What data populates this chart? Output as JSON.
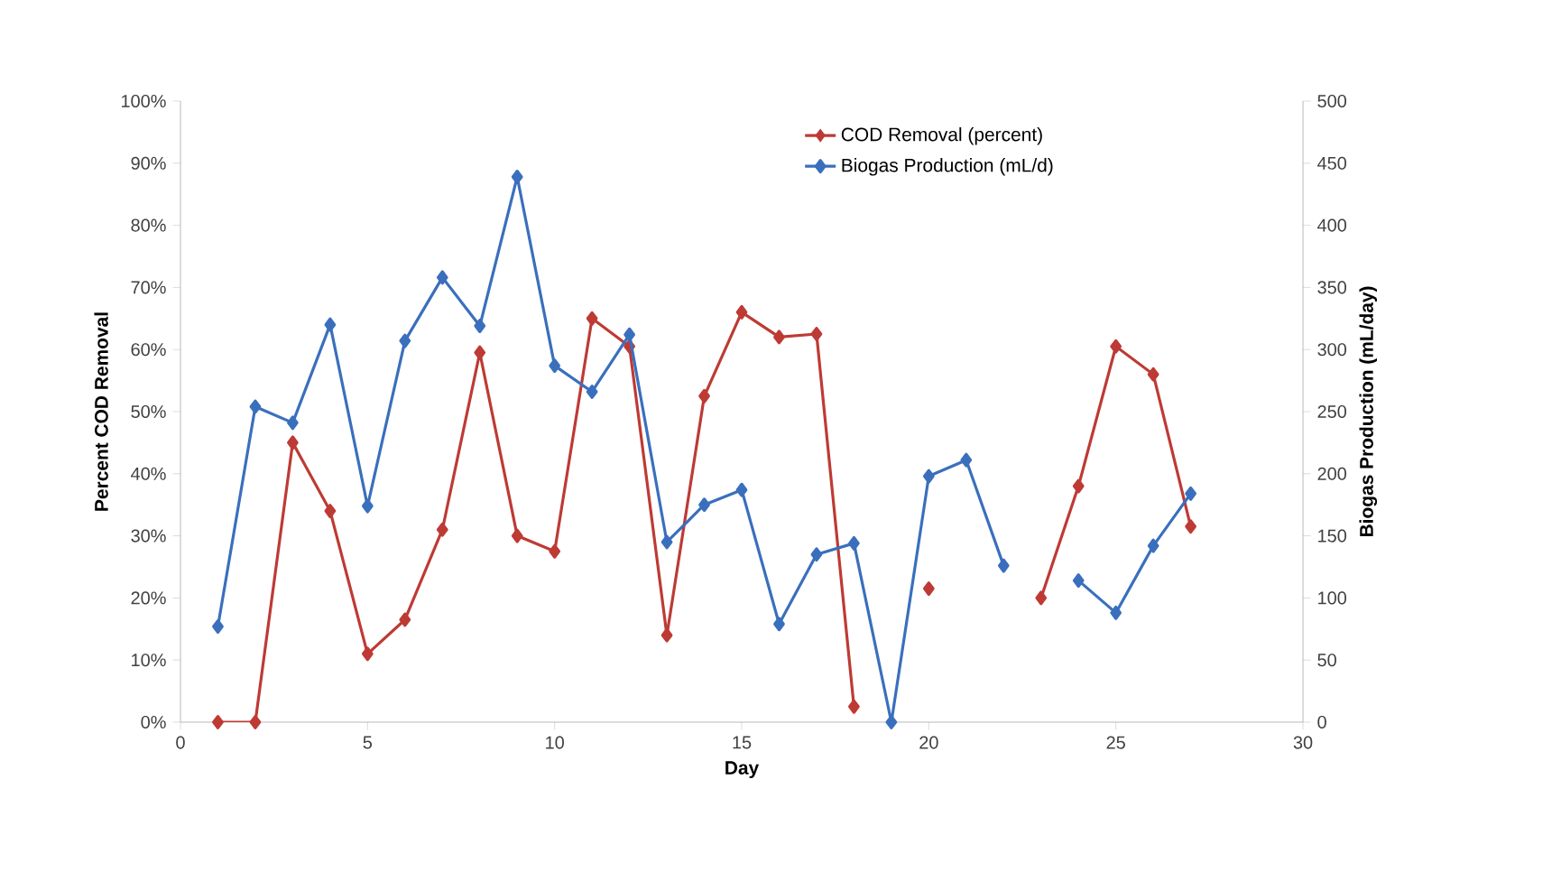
{
  "chart_data": {
    "type": "line",
    "xlabel": "Day",
    "ylabel": "Percent COD Removal",
    "y2label": "Biogas Production (mL/day)",
    "x": [
      1,
      2,
      3,
      4,
      5,
      6,
      7,
      8,
      9,
      10,
      11,
      12,
      13,
      14,
      15,
      16,
      17,
      18,
      19,
      20,
      21,
      22,
      23,
      24,
      25,
      26,
      27
    ],
    "series": [
      {
        "name": "COD Removal (percent)",
        "color": "#be3a34",
        "values": [
          0,
          0,
          45,
          34,
          11,
          16.5,
          31,
          59.5,
          30,
          27.5,
          65,
          60.5,
          14,
          52.5,
          66,
          62,
          62.5,
          2.5,
          null,
          21.5,
          null,
          null,
          20,
          38,
          60.5,
          56,
          31.5
        ]
      },
      {
        "name": "Biogas Production (mL/d)",
        "color": "#3a6fbd",
        "axis": "y2",
        "values": [
          77,
          254,
          241,
          320,
          174,
          307,
          358,
          319,
          439,
          287,
          266,
          312,
          145,
          175,
          187,
          79,
          135,
          144,
          0,
          198,
          211,
          126,
          null,
          114,
          88,
          142,
          184
        ]
      }
    ],
    "xlim": [
      0,
      30
    ],
    "xticks": [
      0,
      5,
      10,
      15,
      20,
      25,
      30
    ],
    "ylim": [
      0,
      100
    ],
    "yticks": [
      {
        "value": 0,
        "label": "0%"
      },
      {
        "value": 10,
        "label": "10%"
      },
      {
        "value": 20,
        "label": "20%"
      },
      {
        "value": 30,
        "label": "30%"
      },
      {
        "value": 40,
        "label": "40%"
      },
      {
        "value": 50,
        "label": "50%"
      },
      {
        "value": 60,
        "label": "60%"
      },
      {
        "value": 70,
        "label": "70%"
      },
      {
        "value": 80,
        "label": "80%"
      },
      {
        "value": 90,
        "label": "90%"
      },
      {
        "value": 100,
        "label": "100%"
      }
    ],
    "y2lim": [
      0,
      500
    ],
    "y2ticks": [
      0,
      50,
      100,
      150,
      200,
      250,
      300,
      350,
      400,
      450,
      500
    ],
    "marker": "diamond",
    "line_style": "solid",
    "legend": "top right",
    "grid": false
  }
}
